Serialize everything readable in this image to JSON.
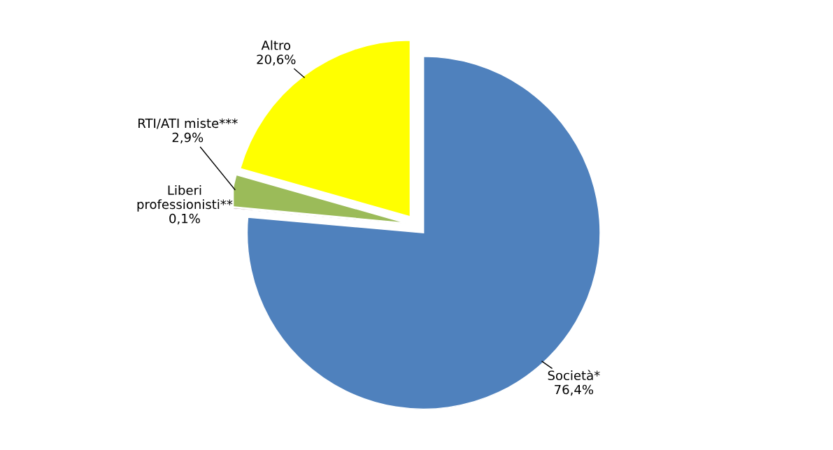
{
  "chart_data": {
    "type": "pie",
    "categories": [
      "Società*",
      "Liberi\nprofessionisti**",
      "RTI/ATI miste***",
      "Altro"
    ],
    "values": [
      76.4,
      0.1,
      2.9,
      20.6
    ],
    "value_labels": [
      "76,4%",
      "0,1%",
      "2,9%",
      "20,6%"
    ],
    "colors": [
      "#4f81bd",
      "#4f1f1f",
      "#9bbb59",
      "#ffff00"
    ],
    "legend": false
  }
}
